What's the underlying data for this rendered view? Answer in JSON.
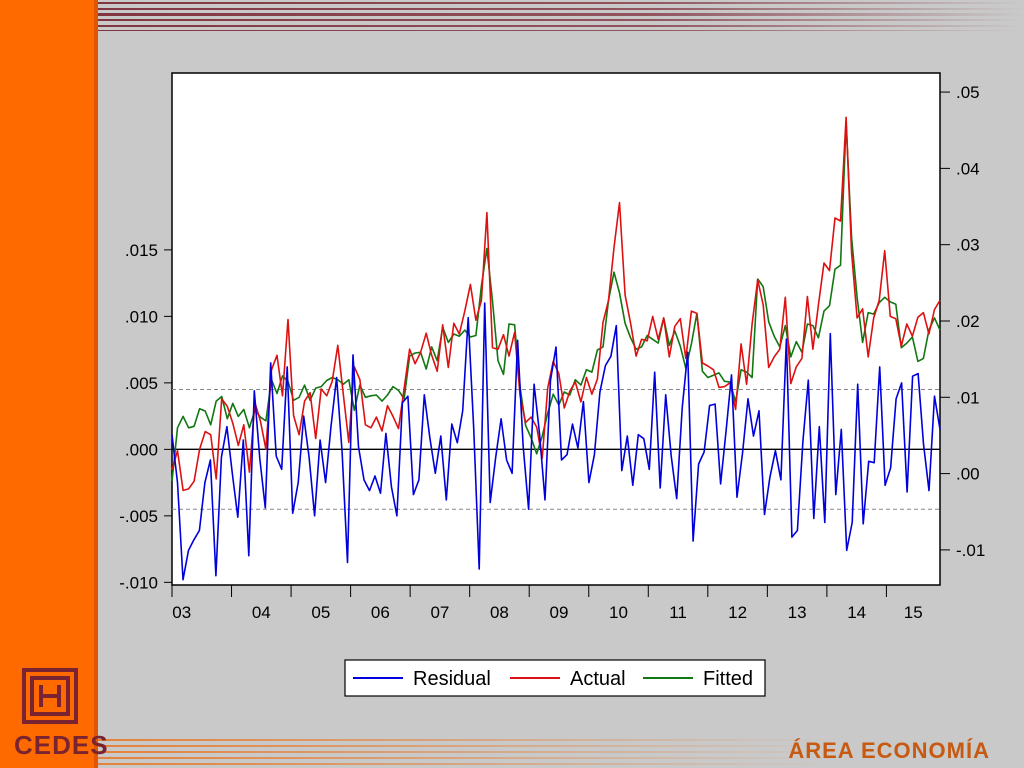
{
  "branding": {
    "org_name": "CEDES",
    "footer_label": "ÁREA ECONOMÍA",
    "accent_color": "#ff6a00",
    "logo_color": "#7a2431"
  },
  "chart_data": {
    "type": "line",
    "x_tick_labels": [
      "03",
      "04",
      "05",
      "06",
      "07",
      "08",
      "09",
      "10",
      "11",
      "12",
      "13",
      "14",
      "15"
    ],
    "x_range": [
      2003,
      2015.9
    ],
    "left_axis": {
      "ticks": [
        ".015",
        ".010",
        ".005",
        ".000",
        "-.005",
        "-.010"
      ],
      "tick_values": [
        0.015,
        0.01,
        0.005,
        0.0,
        -0.005,
        -0.01
      ],
      "range": [
        -0.0102,
        0.0283
      ]
    },
    "right_axis": {
      "ticks": [
        ".05",
        ".04",
        ".03",
        ".02",
        ".01",
        ".00",
        "-.01"
      ],
      "tick_values": [
        0.05,
        0.04,
        0.03,
        0.02,
        0.01,
        0.0,
        -0.01
      ],
      "range": [
        -0.0146,
        0.0525
      ]
    },
    "reference_lines_left": [
      0.0045,
      0.0,
      -0.0045
    ],
    "legend_position": "bottom-center",
    "series": [
      {
        "name": "Residual",
        "axis": "left",
        "color": "#0000dd",
        "values": [
          0.0011,
          -0.0025,
          -0.0098,
          -0.0076,
          -0.0068,
          -0.0061,
          -0.0025,
          -0.0008,
          -0.0095,
          -0.0006,
          0.0017,
          -0.0018,
          -0.0051,
          0.0007,
          -0.008,
          0.0044,
          -0.0007,
          -0.0044,
          0.0065,
          -0.0005,
          -0.0015,
          0.0062,
          -0.0048,
          -0.0025,
          0.0025,
          -0.0006,
          -0.005,
          0.0007,
          -0.0025,
          0.0018,
          0.0054,
          -0.0002,
          -0.0085,
          0.0071,
          0.0002,
          -0.0023,
          -0.0031,
          -0.002,
          -0.0033,
          0.0012,
          -0.0028,
          -0.005,
          0.0035,
          0.004,
          -0.0034,
          -0.0023,
          0.0041,
          0.0009,
          -0.0018,
          0.001,
          -0.0038,
          0.0019,
          0.0005,
          0.0029,
          0.0099,
          0.0016,
          -0.009,
          0.011,
          -0.004,
          -0.0006,
          0.0023,
          -0.0008,
          -0.0018,
          0.0082,
          0.0003,
          -0.0045,
          0.0049,
          0.0012,
          -0.0038,
          0.0052,
          0.0077,
          -0.0008,
          -0.0004,
          0.0019,
          0.0001,
          0.0036,
          -0.0025,
          -0.0004,
          0.0043,
          0.0063,
          0.007,
          0.0093,
          -0.0016,
          0.001,
          -0.0027,
          0.0011,
          0.0008,
          -0.0015,
          0.0058,
          -0.0029,
          0.0041,
          -0.0005,
          -0.0037,
          0.0031,
          0.0073,
          -0.0069,
          -0.0011,
          -0.0002,
          0.0033,
          0.0034,
          -0.0026,
          0.0014,
          0.0056,
          -0.0036,
          -0.0003,
          0.0038,
          0.001,
          0.0029,
          -0.0049,
          -0.0021,
          -0.0001,
          -0.0023,
          0.0083,
          -0.0066,
          -0.0061,
          0.0006,
          0.0052,
          -0.0052,
          0.0017,
          -0.0055,
          0.0087,
          -0.0034,
          0.0015,
          -0.0076,
          -0.0055,
          0.0049,
          -0.0056,
          -0.0009,
          -0.001,
          0.0062,
          -0.0027,
          -0.0014,
          0.0038,
          0.005,
          -0.0032,
          0.0055,
          0.0057,
          0.0004,
          -0.0031,
          0.004,
          0.0015
        ]
      },
      {
        "name": "Actual",
        "axis": "right",
        "color": "#dd1111",
        "values": [
          0.0005,
          0.003,
          -0.0022,
          -0.002,
          -0.001,
          0.0032,
          0.0055,
          0.0051,
          -0.0007,
          0.0098,
          0.0088,
          0.0066,
          0.0037,
          0.0064,
          0.0002,
          0.0093,
          0.0069,
          0.0032,
          0.0136,
          0.0155,
          0.0102,
          0.0202,
          0.0076,
          0.0051,
          0.0095,
          0.0106,
          0.0046,
          0.0111,
          0.0102,
          0.0121,
          0.0168,
          0.0104,
          0.0041,
          0.014,
          0.0123,
          0.0064,
          0.006,
          0.0074,
          0.0056,
          0.0089,
          0.0075,
          0.0059,
          0.0111,
          0.0163,
          0.0144,
          0.0159,
          0.0184,
          0.0155,
          0.0134,
          0.0195,
          0.0139,
          0.0197,
          0.0183,
          0.0213,
          0.0248,
          0.0201,
          0.0227,
          0.0342,
          0.0165,
          0.0163,
          0.0182,
          0.0154,
          0.0185,
          0.0102,
          0.0067,
          0.0074,
          0.0061,
          0.002,
          0.0112,
          0.0147,
          0.0131,
          0.0086,
          0.0108,
          0.012,
          0.0094,
          0.0126,
          0.0104,
          0.0124,
          0.0198,
          0.0227,
          0.0296,
          0.0355,
          0.0234,
          0.0197,
          0.0154,
          0.0176,
          0.0174,
          0.0206,
          0.0176,
          0.0204,
          0.0153,
          0.0193,
          0.0203,
          0.0151,
          0.0213,
          0.021,
          0.0145,
          0.0141,
          0.0136,
          0.0113,
          0.0114,
          0.0119,
          0.0084,
          0.017,
          0.0117,
          0.0196,
          0.0254,
          0.0221,
          0.0139,
          0.0153,
          0.0163,
          0.0231,
          0.0118,
          0.014,
          0.0151,
          0.0232,
          0.0163,
          0.0221,
          0.0276,
          0.0266,
          0.0335,
          0.0331,
          0.0467,
          0.0289,
          0.0204,
          0.0216,
          0.0153,
          0.0204,
          0.0227,
          0.0292,
          0.0206,
          0.0203,
          0.0167,
          0.0196,
          0.018,
          0.0205,
          0.0211,
          0.0183,
          0.0215,
          0.0227
        ]
      },
      {
        "name": "Fitted",
        "axis": "right",
        "color": "#117711",
        "values": [
          -0.001,
          0.006,
          0.0075,
          0.006,
          0.0062,
          0.0085,
          0.0082,
          0.0064,
          0.0095,
          0.0101,
          0.0072,
          0.0092,
          0.0075,
          0.0084,
          0.006,
          0.0083,
          0.0074,
          0.0069,
          0.0123,
          0.0105,
          0.0128,
          0.0121,
          0.0096,
          0.01,
          0.0116,
          0.0096,
          0.0112,
          0.0114,
          0.0122,
          0.0126,
          0.0123,
          0.0117,
          0.0123,
          0.0083,
          0.0116,
          0.01,
          0.0102,
          0.0103,
          0.0095,
          0.0103,
          0.0114,
          0.0109,
          0.0098,
          0.0154,
          0.0158,
          0.0159,
          0.0137,
          0.0166,
          0.0148,
          0.0192,
          0.0172,
          0.0183,
          0.018,
          0.0188,
          0.0179,
          0.0181,
          0.0246,
          0.0295,
          0.0226,
          0.0148,
          0.013,
          0.0196,
          0.0195,
          0.0113,
          0.0063,
          0.0047,
          0.0026,
          0.0049,
          0.0079,
          0.0104,
          0.009,
          0.0107,
          0.0103,
          0.0123,
          0.0116,
          0.0136,
          0.0133,
          0.0162,
          0.0166,
          0.0227,
          0.0264,
          0.0237,
          0.0197,
          0.0178,
          0.0163,
          0.0166,
          0.0181,
          0.0176,
          0.0171,
          0.0204,
          0.0168,
          0.0187,
          0.0167,
          0.0138,
          0.017,
          0.021,
          0.0134,
          0.0126,
          0.0129,
          0.0132,
          0.0121,
          0.012,
          0.0094,
          0.0136,
          0.0133,
          0.0126,
          0.0255,
          0.0245,
          0.0199,
          0.018,
          0.0166,
          0.0194,
          0.0153,
          0.0173,
          0.0159,
          0.0196,
          0.0194,
          0.0178,
          0.0213,
          0.022,
          0.0268,
          0.0273,
          0.046,
          0.0309,
          0.0231,
          0.0172,
          0.0211,
          0.0209,
          0.0224,
          0.0231,
          0.0225,
          0.0222,
          0.0165,
          0.0171,
          0.0179,
          0.0147,
          0.0151,
          0.0188,
          0.0204,
          0.0188
        ]
      }
    ]
  }
}
